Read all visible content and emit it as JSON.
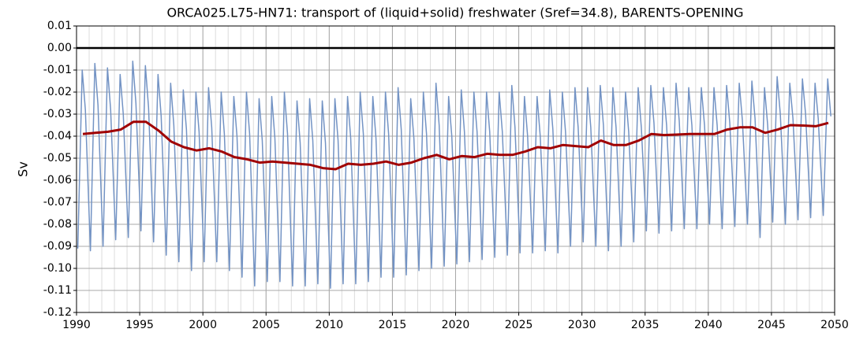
{
  "chart_data": {
    "type": "line",
    "title": "ORCA025.L75-HN71: transport of (liquid+solid) freshwater (Sref=34.8), BARENTS-OPENING",
    "ylabel": "Sv",
    "xlim": [
      1990,
      2050
    ],
    "xticks": [
      1990,
      1995,
      2000,
      2005,
      2010,
      2015,
      2020,
      2025,
      2030,
      2035,
      2040,
      2045,
      2050
    ],
    "xminor": 1,
    "ylim": [
      -0.12,
      0.01
    ],
    "yticks": [
      0.01,
      {
        "value": 0,
        "label": "0.00"
      },
      -0.01,
      -0.02,
      -0.03,
      -0.04,
      -0.05,
      -0.06,
      -0.07,
      -0.08,
      -0.09,
      {
        "value": -0.1,
        "label": "-0.10"
      },
      -0.11,
      -0.12
    ],
    "grid": true,
    "hline": 0,
    "series": [
      {
        "color": "#7393c4",
        "width": 1.5,
        "x": [
          1990.1,
          1990.45,
          1990.7,
          1991.1,
          1991.45,
          1991.7,
          1992.1,
          1992.45,
          1992.7,
          1993.1,
          1993.45,
          1993.7,
          1994.1,
          1994.45,
          1994.7,
          1995.1,
          1995.45,
          1995.7,
          1996.1,
          1996.45,
          1996.7,
          1997.1,
          1997.45,
          1997.7,
          1998.1,
          1998.45,
          1998.7,
          1999.1,
          1999.45,
          1999.7,
          2000.1,
          2000.45,
          2000.7,
          2001.1,
          2001.45,
          2001.7,
          2002.1,
          2002.45,
          2002.7,
          2003.1,
          2003.45,
          2003.7,
          2004.1,
          2004.45,
          2004.7,
          2005.1,
          2005.45,
          2005.7,
          2006.1,
          2006.45,
          2006.7,
          2007.1,
          2007.45,
          2007.7,
          2008.1,
          2008.45,
          2008.7,
          2009.1,
          2009.45,
          2009.7,
          2010.1,
          2010.45,
          2010.7,
          2011.1,
          2011.45,
          2011.7,
          2012.1,
          2012.45,
          2012.7,
          2013.1,
          2013.45,
          2013.7,
          2014.1,
          2014.45,
          2014.7,
          2015.1,
          2015.45,
          2015.7,
          2016.1,
          2016.45,
          2016.7,
          2017.1,
          2017.45,
          2017.7,
          2018.1,
          2018.45,
          2018.7,
          2019.1,
          2019.45,
          2019.7,
          2020.1,
          2020.45,
          2020.7,
          2021.1,
          2021.45,
          2021.7,
          2022.1,
          2022.45,
          2022.7,
          2023.1,
          2023.45,
          2023.7,
          2024.1,
          2024.45,
          2024.7,
          2025.1,
          2025.45,
          2025.7,
          2026.1,
          2026.45,
          2026.7,
          2027.1,
          2027.45,
          2027.7,
          2028.1,
          2028.45,
          2028.7,
          2029.1,
          2029.45,
          2029.7,
          2030.1,
          2030.45,
          2030.7,
          2031.1,
          2031.45,
          2031.7,
          2032.1,
          2032.45,
          2032.7,
          2033.1,
          2033.45,
          2033.7,
          2034.1,
          2034.45,
          2034.7,
          2035.1,
          2035.45,
          2035.7,
          2036.1,
          2036.45,
          2036.7,
          2037.1,
          2037.45,
          2037.7,
          2038.1,
          2038.45,
          2038.7,
          2039.1,
          2039.45,
          2039.7,
          2040.1,
          2040.45,
          2040.7,
          2041.1,
          2041.45,
          2041.7,
          2042.1,
          2042.45,
          2042.7,
          2043.1,
          2043.45,
          2043.7,
          2044.1,
          2044.45,
          2044.7,
          2045.1,
          2045.45,
          2045.7,
          2046.1,
          2046.45,
          2046.7,
          2047.1,
          2047.45,
          2047.7,
          2048.1,
          2048.45,
          2048.7,
          2049.1,
          2049.45,
          2049.7
        ],
        "values": [
          -0.091,
          -0.01,
          -0.028,
          -0.092,
          -0.007,
          -0.026,
          -0.09,
          -0.009,
          -0.028,
          -0.087,
          -0.012,
          -0.03,
          -0.086,
          -0.006,
          -0.025,
          -0.083,
          -0.008,
          -0.027,
          -0.088,
          -0.012,
          -0.031,
          -0.094,
          -0.016,
          -0.035,
          -0.097,
          -0.019,
          -0.037,
          -0.101,
          -0.02,
          -0.038,
          -0.097,
          -0.018,
          -0.036,
          -0.097,
          -0.02,
          -0.039,
          -0.101,
          -0.022,
          -0.04,
          -0.104,
          -0.02,
          -0.039,
          -0.108,
          -0.023,
          -0.042,
          -0.106,
          -0.022,
          -0.041,
          -0.106,
          -0.02,
          -0.039,
          -0.108,
          -0.024,
          -0.043,
          -0.108,
          -0.023,
          -0.042,
          -0.107,
          -0.024,
          -0.043,
          -0.109,
          -0.023,
          -0.042,
          -0.107,
          -0.022,
          -0.041,
          -0.107,
          -0.02,
          -0.039,
          -0.106,
          -0.022,
          -0.041,
          -0.104,
          -0.02,
          -0.039,
          -0.104,
          -0.018,
          -0.037,
          -0.103,
          -0.023,
          -0.041,
          -0.101,
          -0.02,
          -0.039,
          -0.1,
          -0.016,
          -0.035,
          -0.099,
          -0.022,
          -0.04,
          -0.098,
          -0.019,
          -0.038,
          -0.097,
          -0.02,
          -0.038,
          -0.096,
          -0.02,
          -0.038,
          -0.095,
          -0.02,
          -0.038,
          -0.094,
          -0.017,
          -0.036,
          -0.093,
          -0.022,
          -0.04,
          -0.093,
          -0.022,
          -0.04,
          -0.092,
          -0.019,
          -0.037,
          -0.093,
          -0.02,
          -0.038,
          -0.09,
          -0.018,
          -0.036,
          -0.088,
          -0.018,
          -0.036,
          -0.09,
          -0.017,
          -0.035,
          -0.092,
          -0.018,
          -0.036,
          -0.09,
          -0.02,
          -0.038,
          -0.088,
          -0.018,
          -0.036,
          -0.083,
          -0.017,
          -0.034,
          -0.084,
          -0.018,
          -0.035,
          -0.083,
          -0.016,
          -0.033,
          -0.082,
          -0.018,
          -0.035,
          -0.082,
          -0.018,
          -0.035,
          -0.08,
          -0.018,
          -0.035,
          -0.082,
          -0.017,
          -0.034,
          -0.081,
          -0.016,
          -0.033,
          -0.08,
          -0.015,
          -0.032,
          -0.086,
          -0.018,
          -0.035,
          -0.079,
          -0.013,
          -0.03,
          -0.08,
          -0.016,
          -0.032,
          -0.078,
          -0.014,
          -0.03,
          -0.077,
          -0.016,
          -0.032,
          -0.076,
          -0.014,
          -0.031
        ]
      },
      {
        "color": "#a00000",
        "width": 3,
        "x": [
          1990.5,
          1991.5,
          1992.5,
          1993.5,
          1994.5,
          1995.5,
          1996.5,
          1997.5,
          1998.5,
          1999.5,
          2000.5,
          2001.5,
          2002.5,
          2003.5,
          2004.5,
          2005.5,
          2006.5,
          2007.5,
          2008.5,
          2009.5,
          2010.5,
          2011.5,
          2012.5,
          2013.5,
          2014.5,
          2015.5,
          2016.5,
          2017.5,
          2018.5,
          2019.5,
          2020.5,
          2021.5,
          2022.5,
          2023.5,
          2024.5,
          2025.5,
          2026.5,
          2027.5,
          2028.5,
          2029.5,
          2030.5,
          2031.5,
          2032.5,
          2033.5,
          2034.5,
          2035.5,
          2036.5,
          2037.5,
          2038.5,
          2039.5,
          2040.5,
          2041.5,
          2042.5,
          2043.5,
          2044.5,
          2045.5,
          2046.5,
          2047.5,
          2048.5,
          2049.5
        ],
        "values": [
          -0.039,
          -0.0385,
          -0.038,
          -0.037,
          -0.0335,
          -0.0335,
          -0.0375,
          -0.0425,
          -0.045,
          -0.0465,
          -0.0455,
          -0.047,
          -0.0495,
          -0.0505,
          -0.052,
          -0.0515,
          -0.052,
          -0.0525,
          -0.053,
          -0.0545,
          -0.055,
          -0.0525,
          -0.053,
          -0.0525,
          -0.0515,
          -0.053,
          -0.052,
          -0.05,
          -0.0485,
          -0.0505,
          -0.049,
          -0.0495,
          -0.048,
          -0.0485,
          -0.0485,
          -0.047,
          -0.045,
          -0.0455,
          -0.044,
          -0.0445,
          -0.045,
          -0.042,
          -0.044,
          -0.044,
          -0.042,
          -0.039,
          -0.0395,
          -0.0393,
          -0.039,
          -0.039,
          -0.039,
          -0.037,
          -0.036,
          -0.036,
          -0.0385,
          -0.037,
          -0.035,
          -0.0352,
          -0.0355,
          -0.034
        ]
      }
    ]
  }
}
